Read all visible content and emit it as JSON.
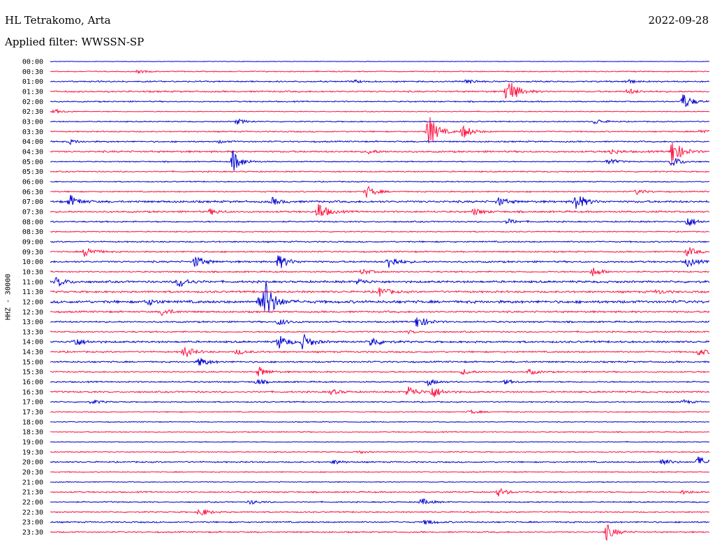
{
  "header": {
    "station": "HL Tetrakomo, Arta",
    "date": "2022-09-28",
    "filter": "Applied filter: WWSSN-SP"
  },
  "chart_data": {
    "type": "line",
    "title": "HL Tetrakomo, Arta",
    "ylabel": "HHZ - 30000",
    "colors": [
      "#0000d0",
      "#ff1040"
    ],
    "x_unit": "minutes",
    "x_range": [
      0,
      30
    ],
    "rows": [
      "00:00",
      "00:30",
      "01:00",
      "01:30",
      "02:00",
      "02:30",
      "03:00",
      "03:30",
      "04:00",
      "04:30",
      "05:00",
      "05:30",
      "06:00",
      "06:30",
      "07:00",
      "07:30",
      "08:00",
      "08:30",
      "09:00",
      "09:30",
      "10:00",
      "10:30",
      "11:00",
      "11:30",
      "12:00",
      "12:30",
      "13:00",
      "13:30",
      "14:00",
      "14:30",
      "15:00",
      "15:30",
      "16:00",
      "16:30",
      "17:00",
      "17:30",
      "18:00",
      "18:30",
      "19:00",
      "19:30",
      "20:00",
      "20:30",
      "21:00",
      "21:30",
      "22:00",
      "22:30",
      "23:00",
      "23:30"
    ],
    "noise": [
      0.3,
      0.6,
      0.8,
      0.9,
      0.7,
      0.5,
      0.6,
      0.7,
      0.8,
      1.0,
      0.6,
      0.7,
      0.6,
      0.7,
      1.2,
      1.0,
      0.8,
      0.6,
      0.8,
      0.8,
      1.0,
      0.8,
      1.2,
      1.1,
      1.5,
      1.0,
      0.9,
      0.8,
      1.1,
      0.9,
      0.9,
      0.8,
      0.8,
      0.9,
      0.7,
      0.6,
      0.5,
      0.6,
      0.5,
      0.6,
      0.8,
      0.6,
      0.5,
      0.8,
      0.7,
      0.7,
      0.8,
      0.8
    ],
    "events": [
      {
        "row": 1,
        "t": 4.0,
        "amp": 2
      },
      {
        "row": 2,
        "t": 18.9,
        "amp": 4
      },
      {
        "row": 2,
        "t": 13.8,
        "amp": 2
      },
      {
        "row": 2,
        "t": 26.2,
        "amp": 3
      },
      {
        "row": 3,
        "t": 20.8,
        "amp": 24
      },
      {
        "row": 3,
        "t": 26.3,
        "amp": 4
      },
      {
        "row": 4,
        "t": 28.8,
        "amp": 12
      },
      {
        "row": 5,
        "t": 0.2,
        "amp": 3
      },
      {
        "row": 6,
        "t": 8.5,
        "amp": 4
      },
      {
        "row": 6,
        "t": 24.8,
        "amp": 4
      },
      {
        "row": 7,
        "t": 17.2,
        "amp": 26
      },
      {
        "row": 7,
        "t": 18.8,
        "amp": 10
      },
      {
        "row": 7,
        "t": 29.6,
        "amp": 4
      },
      {
        "row": 8,
        "t": 0.9,
        "amp": 3
      },
      {
        "row": 8,
        "t": 7.7,
        "amp": 2
      },
      {
        "row": 9,
        "t": 28.3,
        "amp": 20
      },
      {
        "row": 9,
        "t": 14.5,
        "amp": 3
      },
      {
        "row": 9,
        "t": 25.5,
        "amp": 4
      },
      {
        "row": 10,
        "t": 8.3,
        "amp": 16
      },
      {
        "row": 10,
        "t": 25.4,
        "amp": 5
      },
      {
        "row": 10,
        "t": 28.3,
        "amp": 8
      },
      {
        "row": 13,
        "t": 14.4,
        "amp": 9
      },
      {
        "row": 13,
        "t": 26.7,
        "amp": 4
      },
      {
        "row": 14,
        "t": 0.9,
        "amp": 9
      },
      {
        "row": 14,
        "t": 23.9,
        "amp": 14
      },
      {
        "row": 14,
        "t": 10.1,
        "amp": 5
      },
      {
        "row": 14,
        "t": 20.4,
        "amp": 6
      },
      {
        "row": 15,
        "t": 12.2,
        "amp": 14
      },
      {
        "row": 15,
        "t": 7.3,
        "amp": 4
      },
      {
        "row": 15,
        "t": 19.3,
        "amp": 5
      },
      {
        "row": 16,
        "t": 20.8,
        "amp": 4
      },
      {
        "row": 16,
        "t": 29.0,
        "amp": 8
      },
      {
        "row": 19,
        "t": 1.6,
        "amp": 9
      },
      {
        "row": 19,
        "t": 29.0,
        "amp": 7
      },
      {
        "row": 20,
        "t": 6.6,
        "amp": 9
      },
      {
        "row": 20,
        "t": 10.4,
        "amp": 11
      },
      {
        "row": 20,
        "t": 15.4,
        "amp": 10
      },
      {
        "row": 20,
        "t": 29.0,
        "amp": 7
      },
      {
        "row": 21,
        "t": 24.7,
        "amp": 7
      },
      {
        "row": 21,
        "t": 14.2,
        "amp": 4
      },
      {
        "row": 22,
        "t": 0.3,
        "amp": 7
      },
      {
        "row": 22,
        "t": 5.8,
        "amp": 4
      },
      {
        "row": 22,
        "t": 5.9,
        "amp": 5
      },
      {
        "row": 22,
        "t": 14.0,
        "amp": 4
      },
      {
        "row": 23,
        "t": 15.0,
        "amp": 7
      },
      {
        "row": 23,
        "t": 27.6,
        "amp": 3
      },
      {
        "row": 24,
        "t": 9.5,
        "amp": 12
      },
      {
        "row": 24,
        "t": 9.8,
        "amp": 26
      },
      {
        "row": 24,
        "t": 4.4,
        "amp": 5
      },
      {
        "row": 25,
        "t": 5.1,
        "amp": 6
      },
      {
        "row": 26,
        "t": 10.4,
        "amp": 5
      },
      {
        "row": 26,
        "t": 16.7,
        "amp": 10
      },
      {
        "row": 27,
        "t": 16.3,
        "amp": 2
      },
      {
        "row": 28,
        "t": 1.1,
        "amp": 7
      },
      {
        "row": 28,
        "t": 10.4,
        "amp": 10
      },
      {
        "row": 28,
        "t": 11.5,
        "amp": 11
      },
      {
        "row": 28,
        "t": 14.6,
        "amp": 8
      },
      {
        "row": 29,
        "t": 6.1,
        "amp": 9
      },
      {
        "row": 29,
        "t": 8.5,
        "amp": 4
      },
      {
        "row": 29,
        "t": 29.5,
        "amp": 5
      },
      {
        "row": 30,
        "t": 6.8,
        "amp": 7
      },
      {
        "row": 31,
        "t": 9.5,
        "amp": 7
      },
      {
        "row": 31,
        "t": 18.8,
        "amp": 4
      },
      {
        "row": 31,
        "t": 21.8,
        "amp": 4
      },
      {
        "row": 32,
        "t": 9.4,
        "amp": 4
      },
      {
        "row": 32,
        "t": 17.2,
        "amp": 5
      },
      {
        "row": 32,
        "t": 20.7,
        "amp": 3
      },
      {
        "row": 33,
        "t": 16.3,
        "amp": 9
      },
      {
        "row": 33,
        "t": 17.4,
        "amp": 9
      },
      {
        "row": 33,
        "t": 12.8,
        "amp": 4
      },
      {
        "row": 34,
        "t": 1.9,
        "amp": 3
      },
      {
        "row": 34,
        "t": 28.8,
        "amp": 3
      },
      {
        "row": 35,
        "t": 19.1,
        "amp": 3
      },
      {
        "row": 39,
        "t": 14.0,
        "amp": 2
      },
      {
        "row": 40,
        "t": 12.9,
        "amp": 3
      },
      {
        "row": 40,
        "t": 27.8,
        "amp": 6
      },
      {
        "row": 40,
        "t": 29.5,
        "amp": 8
      },
      {
        "row": 43,
        "t": 20.4,
        "amp": 6
      },
      {
        "row": 43,
        "t": 28.8,
        "amp": 3
      },
      {
        "row": 44,
        "t": 16.9,
        "amp": 5
      },
      {
        "row": 44,
        "t": 9.1,
        "amp": 3
      },
      {
        "row": 45,
        "t": 6.8,
        "amp": 7
      },
      {
        "row": 46,
        "t": 17.1,
        "amp": 4
      },
      {
        "row": 47,
        "t": 25.3,
        "amp": 12
      }
    ]
  }
}
